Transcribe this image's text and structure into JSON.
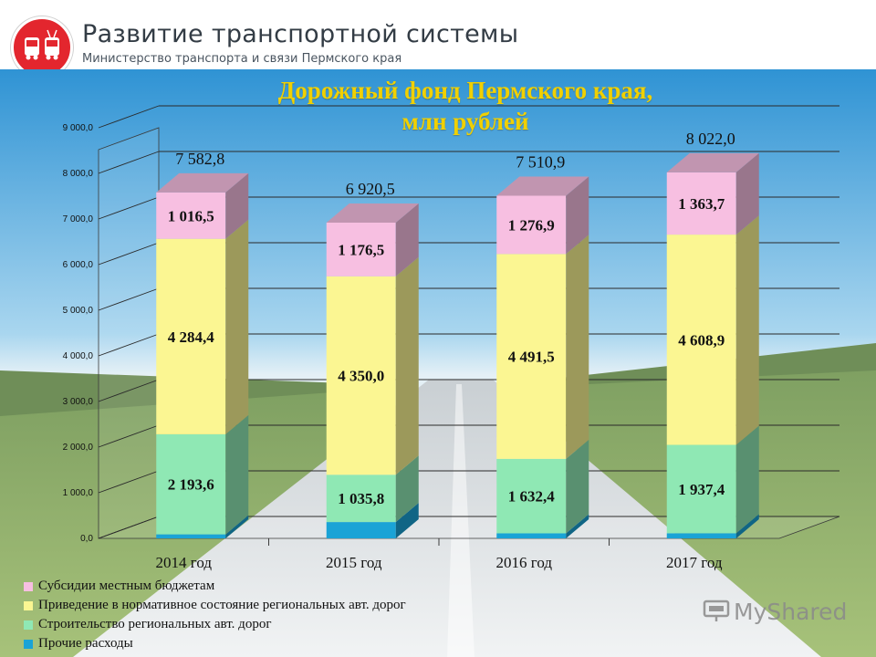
{
  "header": {
    "title": "Развитие транспортной системы",
    "subtitle": "Министерство транспорта и связи Пермского края"
  },
  "watermark": "MyShared",
  "chart_data": {
    "type": "bar",
    "stacked": true,
    "title": "Дорожный фонд Пермского края, млн рублей",
    "categories": [
      "2014 год",
      "2015 год",
      "2016 год",
      "2017 год"
    ],
    "totals": [
      7582.8,
      6920.5,
      7510.9,
      8022.0
    ],
    "total_labels": [
      "7 582,8",
      "6 920,5",
      "7 510,9",
      "8 022,0"
    ],
    "ylim": [
      0,
      9000
    ],
    "yticks": [
      0,
      1000,
      2000,
      3000,
      4000,
      5000,
      6000,
      7000,
      8000,
      9000
    ],
    "ytick_labels": [
      "0,0",
      "1 000,0",
      "2 000,0",
      "3 000,0",
      "4 000,0",
      "5 000,0",
      "6 000,0",
      "7 000,0",
      "8 000,0",
      "9 000,0"
    ],
    "grid": true,
    "legend_position": "bottom-left",
    "series": [
      {
        "name": "Прочие расходы",
        "color": "#1aa3d6",
        "values": [
          88.3,
          358.2,
          110.1,
          111.9
        ],
        "labels": [
          "",
          "",
          "",
          ""
        ]
      },
      {
        "name": "Строительство региональных авт. дорог",
        "color": "#8fe8b4",
        "values": [
          2193.6,
          1035.8,
          1632.4,
          1937.4
        ],
        "labels": [
          "2 193,6",
          "1 035,8",
          "1 632,4",
          "1 937,4"
        ]
      },
      {
        "name": "Приведение в нормативное состояние региональных авт. дорог",
        "color": "#fbf692",
        "values": [
          4284.4,
          4350.0,
          4491.5,
          4608.9
        ],
        "labels": [
          "4 284,4",
          "4 350,0",
          "4 491,5",
          "4 608,9"
        ]
      },
      {
        "name": "Субсидии местным бюджетам",
        "color": "#f7bfe1",
        "values": [
          1016.5,
          1176.5,
          1276.9,
          1363.7
        ],
        "labels": [
          "1 016,5",
          "1 176,5",
          "1 276,9",
          "1 363,7"
        ]
      }
    ]
  }
}
